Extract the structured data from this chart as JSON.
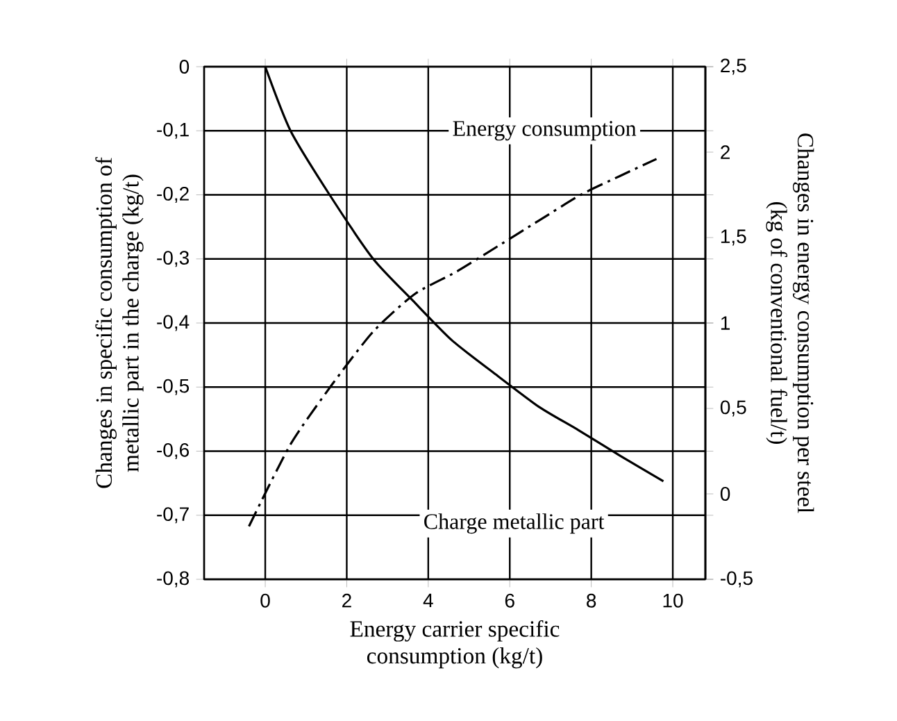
{
  "chart_data": {
    "type": "line",
    "xlabel": "Energy carrier specific consumption (kg/t)",
    "ylabel": "Changes in specific consumption of metallic part in the charge (kg/t)",
    "y2label": "Changes in energy consumption per steel (kg of  conventional fuel/t)",
    "xlim": [
      -1.5,
      10.8
    ],
    "xticks": [
      0,
      2,
      4,
      6,
      8,
      10
    ],
    "ylim": [
      -0.8,
      0
    ],
    "yticks": [
      {
        "value": 0,
        "label": "0"
      },
      {
        "value": -0.1,
        "label": "-0,1"
      },
      {
        "value": -0.2,
        "label": "-0,2"
      },
      {
        "value": -0.3,
        "label": "-0,3"
      },
      {
        "value": -0.4,
        "label": "-0,4"
      },
      {
        "value": -0.5,
        "label": "-0,5"
      },
      {
        "value": -0.6,
        "label": "-0,6"
      },
      {
        "value": -0.7,
        "label": "-0,7"
      },
      {
        "value": -0.8,
        "label": "-0,8"
      }
    ],
    "y2lim": [
      -0.5,
      2.5
    ],
    "y2ticks": [
      {
        "value": 2.5,
        "label": "2,5"
      },
      {
        "value": 2,
        "label": "2"
      },
      {
        "value": 1.5,
        "label": "1,5"
      },
      {
        "value": 1,
        "label": "1"
      },
      {
        "value": 0.5,
        "label": "0,5"
      },
      {
        "value": 0,
        "label": "0"
      },
      {
        "value": -0.5,
        "label": "-0,5"
      }
    ],
    "grid": true,
    "marker": "none",
    "series": [
      {
        "name": "Charge metallic part",
        "color": "#000000",
        "line_style": "solid",
        "x": [
          0,
          0.62,
          1.58,
          2.65,
          3.62,
          4.58,
          5.65,
          6.72,
          7.68,
          8.7,
          9.77
        ],
        "values": [
          0,
          -0.1,
          -0.2,
          -0.3,
          -0.365,
          -0.427,
          -0.48,
          -0.531,
          -0.567,
          -0.607,
          -0.647
        ]
      },
      {
        "name": "Energy consumption",
        "color": "#000000",
        "line_style": "dashdot",
        "axis": "y2",
        "x": [
          -0.4,
          0.62,
          1.64,
          2.65,
          3.67,
          4.69,
          5.71,
          6.72,
          7.74,
          8.7,
          9.6
        ],
        "values": [
          -0.19,
          0.29,
          0.64,
          0.95,
          1.17,
          1.3,
          1.45,
          1.6,
          1.75,
          1.86,
          1.96
        ]
      }
    ]
  }
}
